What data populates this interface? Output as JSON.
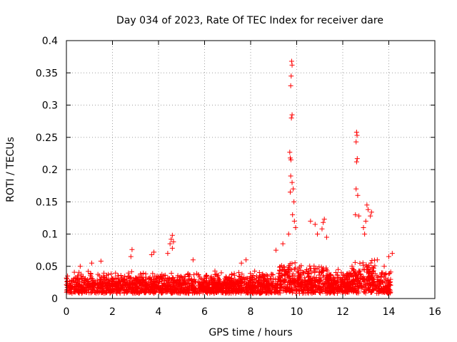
{
  "chart_data": {
    "type": "scatter",
    "title": "Day 034 of 2023, Rate Of TEC Index for receiver dare",
    "xlabel": "GPS time / hours",
    "ylabel": "ROTI / TECUs",
    "xlim": [
      0,
      16
    ],
    "ylim": [
      0,
      0.4
    ],
    "x_ticks": [
      0,
      2,
      4,
      6,
      8,
      10,
      12,
      14,
      16
    ],
    "y_ticks": [
      0,
      0.05,
      0.1,
      0.15,
      0.2,
      0.25,
      0.3,
      0.35,
      0.4
    ],
    "x_tick_labels": [
      "0",
      "2",
      "4",
      "6",
      "8",
      "10",
      "12",
      "14",
      "16"
    ],
    "y_tick_labels": [
      "0",
      "0.05",
      "0.1",
      "0.15",
      "0.2",
      "0.25",
      "0.3",
      "0.35",
      "0.4"
    ],
    "grid": true,
    "marker": "+",
    "marker_color": "#ff0000",
    "data_extent": {
      "x_min": 0.0,
      "x_max": 14.1
    },
    "series": [
      {
        "name": "ROTI",
        "points": [
          [
            9.78,
            0.368
          ],
          [
            9.8,
            0.362
          ],
          [
            9.76,
            0.345
          ],
          [
            9.74,
            0.33
          ],
          [
            9.8,
            0.285
          ],
          [
            9.77,
            0.28
          ],
          [
            9.7,
            0.227
          ],
          [
            9.72,
            0.218
          ],
          [
            9.75,
            0.215
          ],
          [
            9.74,
            0.19
          ],
          [
            9.8,
            0.18
          ],
          [
            9.85,
            0.17
          ],
          [
            9.72,
            0.165
          ],
          [
            9.88,
            0.15
          ],
          [
            9.82,
            0.13
          ],
          [
            9.9,
            0.12
          ],
          [
            9.65,
            0.1
          ],
          [
            9.95,
            0.11
          ],
          [
            12.6,
            0.258
          ],
          [
            12.62,
            0.253
          ],
          [
            12.58,
            0.243
          ],
          [
            12.63,
            0.217
          ],
          [
            12.6,
            0.212
          ],
          [
            12.58,
            0.17
          ],
          [
            12.65,
            0.16
          ],
          [
            12.55,
            0.13
          ],
          [
            12.7,
            0.128
          ],
          [
            13.05,
            0.145
          ],
          [
            13.1,
            0.138
          ],
          [
            13.25,
            0.134
          ],
          [
            13.2,
            0.128
          ],
          [
            13.0,
            0.12
          ],
          [
            12.9,
            0.11
          ],
          [
            12.95,
            0.1
          ],
          [
            10.6,
            0.12
          ],
          [
            10.8,
            0.115
          ],
          [
            11.2,
            0.123
          ],
          [
            11.15,
            0.118
          ],
          [
            11.1,
            0.108
          ],
          [
            10.9,
            0.1
          ],
          [
            11.3,
            0.095
          ],
          [
            4.6,
            0.098
          ],
          [
            4.55,
            0.092
          ],
          [
            4.65,
            0.088
          ],
          [
            4.5,
            0.085
          ],
          [
            4.6,
            0.078
          ],
          [
            4.4,
            0.07
          ],
          [
            2.85,
            0.076
          ],
          [
            3.8,
            0.072
          ],
          [
            3.7,
            0.068
          ],
          [
            2.8,
            0.065
          ],
          [
            5.5,
            0.06
          ],
          [
            1.5,
            0.058
          ],
          [
            1.1,
            0.055
          ],
          [
            0.6,
            0.05
          ],
          [
            7.6,
            0.055
          ],
          [
            7.8,
            0.06
          ],
          [
            9.1,
            0.075
          ],
          [
            9.4,
            0.085
          ],
          [
            14.15,
            0.07
          ],
          [
            14.0,
            0.065
          ],
          [
            0.05,
            0.035
          ],
          [
            0.5,
            0.03
          ],
          [
            2.0,
            0.03
          ],
          [
            3.0,
            0.032
          ],
          [
            6.0,
            0.028
          ],
          [
            7.0,
            0.03
          ],
          [
            8.5,
            0.035
          ],
          [
            10.3,
            0.04
          ],
          [
            11.8,
            0.045
          ],
          [
            13.5,
            0.06
          ],
          [
            13.8,
            0.05
          ]
        ]
      }
    ]
  }
}
